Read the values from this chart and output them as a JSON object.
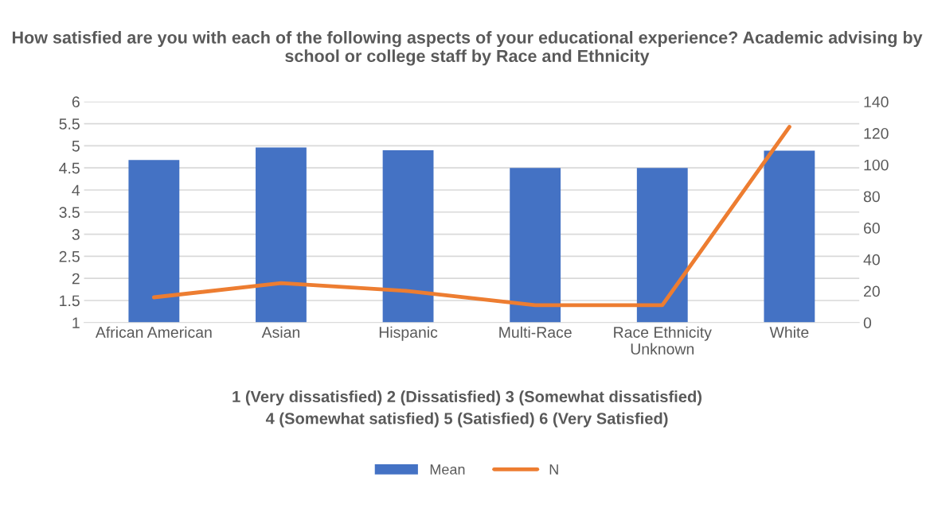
{
  "chart_data": {
    "type": "bar",
    "title": "How satisfied are you with each of the following aspects of your educational experience? Academic advising by school or college staff by Race and Ethnicity",
    "categories": [
      "African American",
      "Asian",
      "Hispanic",
      "Multi-Race",
      "Race Ethnicity\nUnknown",
      "White"
    ],
    "series": [
      {
        "name": "Mean",
        "color": "#4472c4",
        "values": [
          4.68,
          4.96,
          4.9,
          4.5,
          4.5,
          4.89
        ]
      },
      {
        "name": "N",
        "type": "line",
        "axis": "y2",
        "color": "#ed7d31",
        "values": [
          16,
          25,
          20,
          11,
          11,
          124
        ]
      }
    ],
    "ylim": [
      1,
      6
    ],
    "yticks": [
      1,
      1.5,
      2,
      2.5,
      3,
      3.5,
      4,
      4.5,
      5,
      5.5,
      6
    ],
    "y2lim": [
      0,
      140
    ],
    "y2ticks": [
      0,
      20,
      40,
      60,
      80,
      100,
      120,
      140
    ],
    "annotations": [
      "1 (Very dissatisfied) 2 (Dissatisfied) 3 (Somewhat dissatisfied)\n4 (Somewhat satisfied) 5 (Satisfied) 6 (Very Satisfied)"
    ],
    "grid": "y",
    "legend": "bottom",
    "marker": "none"
  }
}
